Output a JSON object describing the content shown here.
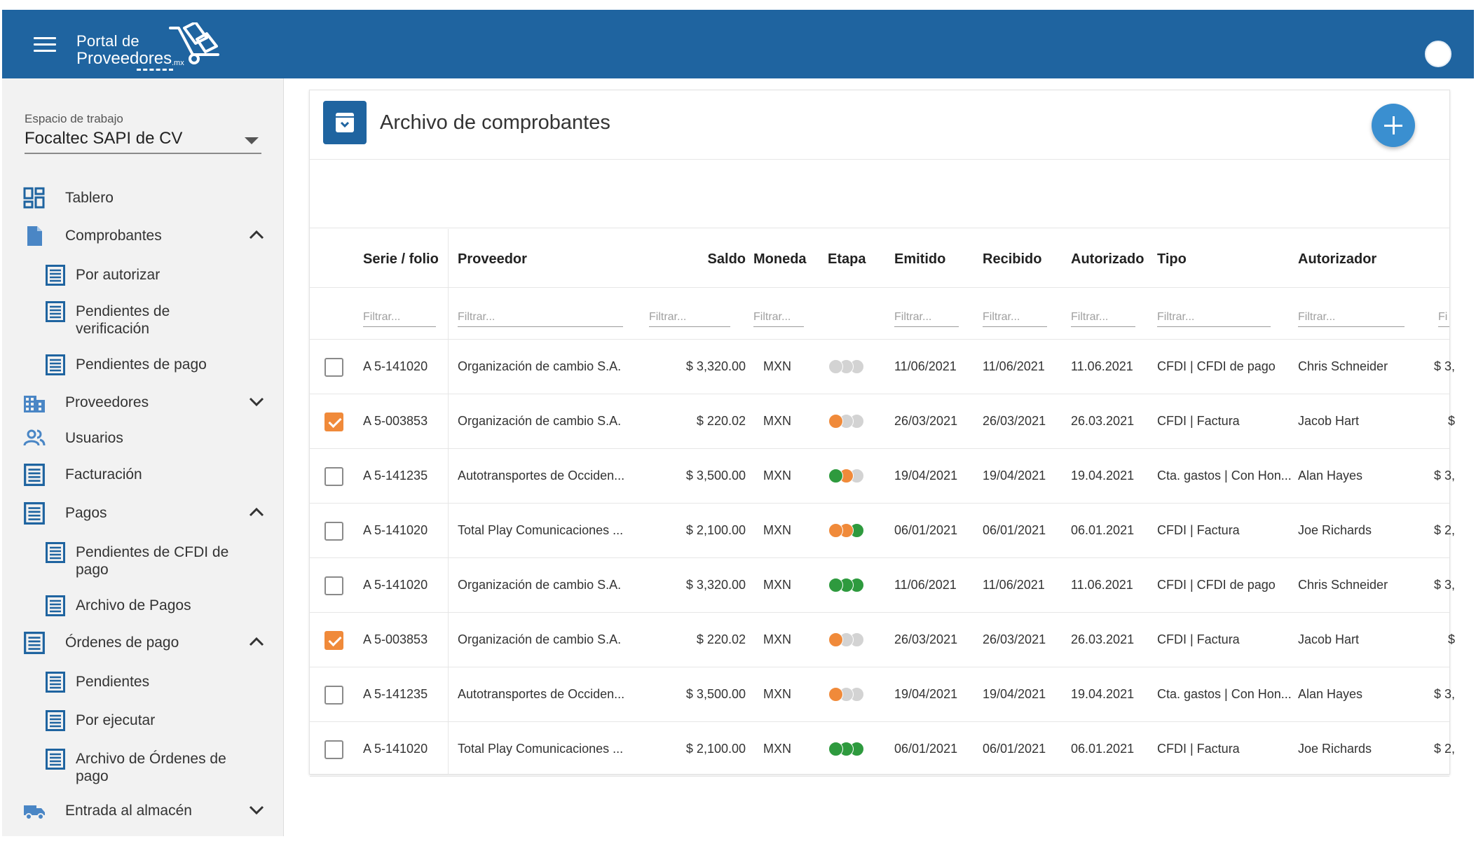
{
  "header": {
    "logo_line1": "Portal de",
    "logo_line2": "Proveedores",
    "logo_suffix": ".mx",
    "brand_color": "#1f64a0"
  },
  "workspace": {
    "label": "Espacio de trabajo",
    "value": "Focaltec SAPI de CV"
  },
  "sidebar": {
    "tablero": "Tablero",
    "comprobantes": "Comprobantes",
    "por_autorizar": "Por autorizar",
    "pend_verificacion": "Pendientes de verificación",
    "pend_pago": "Pendientes de pago",
    "proveedores": "Proveedores",
    "usuarios": "Usuarios",
    "facturacion": "Facturación",
    "pagos": "Pagos",
    "pend_cfdi_pago": "Pendientes de CFDI de pago",
    "archivo_pagos": "Archivo de Pagos",
    "ordenes_pago": "Órdenes de pago",
    "pendientes": "Pendientes",
    "por_ejecutar": "Por ejecutar",
    "archivo_ordenes": "Archivo de Órdenes de pago",
    "entrada_almacen": "Entrada al almacén"
  },
  "page": {
    "title": "Archivo de comprobantes"
  },
  "table": {
    "columns": {
      "serie": "Serie / folio",
      "proveedor": "Proveedor",
      "saldo": "Saldo",
      "moneda": "Moneda",
      "etapa": "Etapa",
      "emitido": "Emitido",
      "recibido": "Recibido",
      "autorizado": "Autorizado",
      "tipo": "Tipo",
      "autorizador": "Autorizador"
    },
    "filter_placeholder": "Filtrar...",
    "filter_partial": "Fi",
    "stage_colors": {
      "gray": "#d3d3d3",
      "orange": "#f08a3a",
      "green": "#2e9a3e"
    },
    "rows": [
      {
        "checked": false,
        "serie": "A 5-141020",
        "proveedor": "Organización de cambio S.A.",
        "saldo": "$ 3,320.00",
        "moneda": "MXN",
        "etapa": [
          "gray",
          "gray",
          "gray"
        ],
        "emitido": "11/06/2021",
        "recibido": "11/06/2021",
        "autorizado": "11.06.2021",
        "tipo": "CFDI | CFDI de pago",
        "autorizador": "Chris Schneider",
        "extra": "$ 3,"
      },
      {
        "checked": true,
        "serie": "A 5-003853",
        "proveedor": "Organización de cambio S.A.",
        "saldo": "$ 220.02",
        "moneda": "MXN",
        "etapa": [
          "orange",
          "gray",
          "gray"
        ],
        "emitido": "26/03/2021",
        "recibido": "26/03/2021",
        "autorizado": "26.03.2021",
        "tipo": "CFDI | Factura",
        "autorizador": "Jacob Hart",
        "extra": "$"
      },
      {
        "checked": false,
        "serie": "A 5-141235",
        "proveedor": "Autotransportes de Occiden...",
        "saldo": "$ 3,500.00",
        "moneda": "MXN",
        "etapa": [
          "green",
          "orange",
          "gray"
        ],
        "emitido": "19/04/2021",
        "recibido": "19/04/2021",
        "autorizado": "19.04.2021",
        "tipo": "Cta. gastos | Con Hon...",
        "autorizador": "Alan Hayes",
        "extra": "$ 3,"
      },
      {
        "checked": false,
        "serie": "A 5-141020",
        "proveedor": "Total Play Comunicaciones ...",
        "saldo": "$ 2,100.00",
        "moneda": "MXN",
        "etapa": [
          "orange",
          "orange",
          "green"
        ],
        "emitido": "06/01/2021",
        "recibido": "06/01/2021",
        "autorizado": "06.01.2021",
        "tipo": "CFDI | Factura",
        "autorizador": "Joe Richards",
        "extra": "$ 2,"
      },
      {
        "checked": false,
        "serie": "A 5-141020",
        "proveedor": "Organización de cambio S.A.",
        "saldo": "$ 3,320.00",
        "moneda": "MXN",
        "etapa": [
          "green",
          "green",
          "green"
        ],
        "emitido": "11/06/2021",
        "recibido": "11/06/2021",
        "autorizado": "11.06.2021",
        "tipo": "CFDI | CFDI de pago",
        "autorizador": "Chris Schneider",
        "extra": "$ 3,"
      },
      {
        "checked": true,
        "serie": "A 5-003853",
        "proveedor": "Organización de cambio S.A.",
        "saldo": "$ 220.02",
        "moneda": "MXN",
        "etapa": [
          "orange",
          "gray",
          "gray"
        ],
        "emitido": "26/03/2021",
        "recibido": "26/03/2021",
        "autorizado": "26.03.2021",
        "tipo": "CFDI | Factura",
        "autorizador": "Jacob Hart",
        "extra": "$"
      },
      {
        "checked": false,
        "serie": "A 5-141235",
        "proveedor": "Autotransportes de Occiden...",
        "saldo": "$ 3,500.00",
        "moneda": "MXN",
        "etapa": [
          "orange",
          "gray",
          "gray"
        ],
        "emitido": "19/04/2021",
        "recibido": "19/04/2021",
        "autorizado": "19.04.2021",
        "tipo": "Cta. gastos | Con Hon...",
        "autorizador": "Alan Hayes",
        "extra": "$ 3,"
      },
      {
        "checked": false,
        "serie": "A 5-141020",
        "proveedor": "Total Play Comunicaciones ...",
        "saldo": "$ 2,100.00",
        "moneda": "MXN",
        "etapa": [
          "green",
          "green",
          "green"
        ],
        "emitido": "06/01/2021",
        "recibido": "06/01/2021",
        "autorizado": "06.01.2021",
        "tipo": "CFDI | Factura",
        "autorizador": "Joe Richards",
        "extra": "$ 2,"
      }
    ]
  }
}
